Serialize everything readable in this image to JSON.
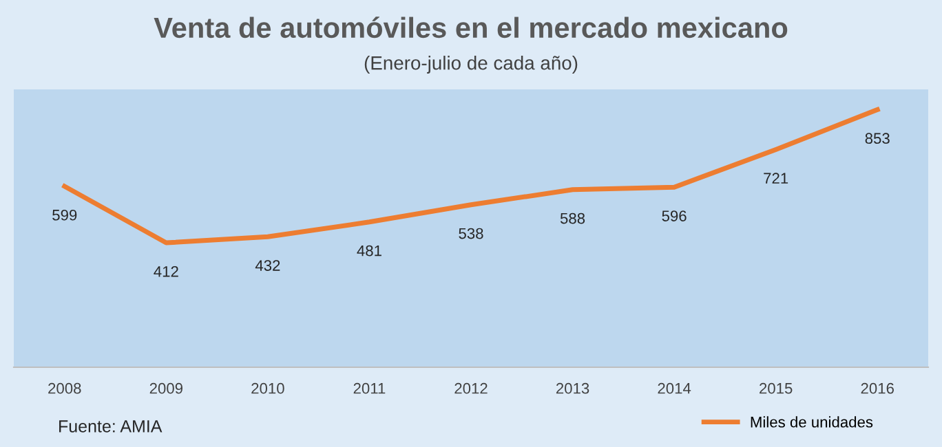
{
  "chart_data": {
    "type": "line",
    "title": "Venta de automóviles en el mercado mexicano",
    "subtitle": "(Enero-julio de cada año)",
    "categories": [
      "2008",
      "2009",
      "2010",
      "2011",
      "2012",
      "2013",
      "2014",
      "2015",
      "2016"
    ],
    "series": [
      {
        "name": "Miles de unidades",
        "color": "#ed7d31",
        "values": [
          599,
          412,
          432,
          481,
          538,
          588,
          596,
          721,
          853
        ]
      }
    ],
    "ylim": [
      0,
      920
    ],
    "data_labels": true,
    "legend": "bottom right",
    "marker": "none",
    "line_style": "solid",
    "tick_labels": "x",
    "annotations": [
      "Fuente: AMIA"
    ]
  }
}
